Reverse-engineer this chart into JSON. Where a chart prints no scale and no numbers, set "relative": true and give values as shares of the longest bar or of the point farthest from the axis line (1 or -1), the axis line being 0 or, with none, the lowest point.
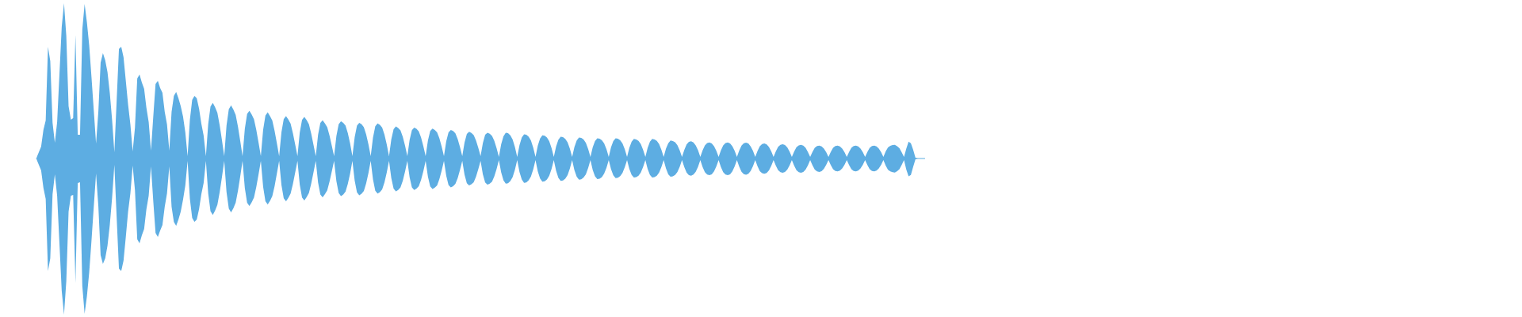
{
  "chart_data": {
    "type": "area",
    "relative": true,
    "categories": [
      null,
      null,
      null,
      null,
      null,
      null,
      null,
      null,
      null,
      null,
      null,
      null,
      null,
      null,
      null,
      null,
      null,
      null,
      null,
      null,
      null,
      null,
      null,
      null,
      null,
      null,
      null,
      null,
      null,
      null,
      null,
      null,
      null,
      null,
      null,
      null,
      null,
      null,
      null,
      null,
      null,
      null,
      null,
      null,
      null,
      null,
      null,
      null,
      null,
      null,
      null,
      null,
      null,
      null,
      null,
      null,
      null,
      null,
      null,
      null,
      null,
      null,
      null,
      null,
      null,
      null,
      null,
      null,
      null,
      null,
      null,
      null,
      null,
      null,
      null,
      null,
      null,
      null,
      null,
      null,
      null,
      null,
      null,
      null,
      null,
      null,
      null,
      null,
      null,
      null,
      null,
      null,
      null,
      null,
      null,
      null,
      null,
      null,
      null,
      null,
      null,
      null,
      null,
      null,
      null,
      null,
      null,
      null,
      null,
      null,
      null,
      null,
      null,
      null,
      null,
      null,
      null,
      null,
      null,
      null,
      null,
      null,
      null,
      null,
      null,
      null,
      null,
      null,
      null,
      null,
      null,
      null,
      null,
      null,
      null,
      null,
      null,
      null,
      null,
      null,
      null,
      null,
      null,
      null,
      null,
      null,
      null,
      null,
      null,
      null,
      null,
      null,
      null,
      null,
      null,
      null,
      null,
      null,
      null,
      null,
      null,
      null,
      null,
      null,
      null,
      null,
      null,
      null,
      null,
      null,
      null,
      null,
      null,
      null,
      null,
      null,
      null,
      null,
      null,
      null,
      null,
      null,
      null,
      null,
      null,
      null,
      null,
      null,
      null,
      null,
      null,
      null,
      null,
      null,
      null,
      null,
      null,
      null,
      null,
      null,
      null,
      null,
      null,
      null,
      null,
      null,
      null,
      null,
      null,
      null,
      null,
      null,
      null,
      null,
      null,
      null,
      null,
      null,
      null,
      null,
      null,
      null,
      null,
      null,
      null,
      null,
      null,
      null,
      null,
      null,
      null,
      null,
      null,
      null,
      null,
      null,
      null,
      null,
      null,
      null,
      null,
      null,
      null,
      null,
      null,
      null,
      null,
      null,
      null,
      null,
      null,
      null,
      null,
      null,
      null,
      null,
      null,
      null,
      null,
      null,
      null,
      null,
      null,
      null,
      null,
      null,
      null,
      null,
      null,
      null,
      null,
      null,
      null,
      null,
      null,
      null,
      null,
      null,
      null,
      null,
      null,
      null,
      null,
      null,
      null,
      null,
      null,
      null,
      null,
      null,
      null,
      null,
      null,
      null,
      null,
      null,
      null,
      null,
      null,
      null,
      null,
      null,
      null,
      null,
      null,
      null,
      null,
      null,
      null,
      null,
      null,
      null,
      null,
      null,
      null,
      null,
      null,
      null,
      null,
      null,
      null,
      null,
      null,
      null,
      null,
      null,
      null,
      null,
      null,
      null,
      null,
      null,
      null,
      null,
      null,
      null,
      null,
      null,
      null,
      null,
      null,
      null,
      null,
      null,
      null,
      null,
      null,
      null,
      null,
      null,
      null,
      null,
      null,
      null,
      null,
      null,
      null,
      null,
      null,
      null,
      null,
      null,
      null,
      null,
      null,
      null,
      null,
      null,
      null,
      null,
      null,
      null,
      null,
      null,
      null,
      null,
      null,
      null,
      null,
      null,
      null,
      null,
      null,
      null,
      null,
      null,
      null,
      null,
      null
    ],
    "series": [
      {
        "color": "#5dade2",
        "values": [
          0.005,
          0.041,
          0.076,
          0.183,
          0.244,
          0.716,
          0.624,
          0.228,
          0.102,
          0.234,
          0.538,
          0.843,
          0.995,
          0.787,
          0.335,
          0.249,
          0.259,
          0.792,
          0.152,
          0.152,
          0.827,
          0.99,
          0.873,
          0.726,
          0.523,
          0.31,
          0.096,
          0.299,
          0.614,
          0.675,
          0.629,
          0.553,
          0.421,
          0.249,
          0.041,
          0.371,
          0.701,
          0.716,
          0.65,
          0.497,
          0.345,
          0.218,
          0.046,
          0.198,
          0.513,
          0.538,
          0.487,
          0.447,
          0.325,
          0.234,
          0.051,
          0.269,
          0.477,
          0.497,
          0.452,
          0.421,
          0.299,
          0.218,
          0.051,
          0.299,
          0.401,
          0.426,
          0.386,
          0.335,
          0.269,
          0.168,
          0.015,
          0.249,
          0.376,
          0.401,
          0.386,
          0.32,
          0.223,
          0.147,
          0.015,
          0.221,
          0.332,
          0.357,
          0.328,
          0.293,
          0.214,
          0.118,
          0.015,
          0.211,
          0.316,
          0.34,
          0.313,
          0.279,
          0.204,
          0.112,
          0.015,
          0.19,
          0.285,
          0.306,
          0.282,
          0.251,
          0.184,
          0.101,
          0.015,
          0.184,
          0.275,
          0.296,
          0.272,
          0.243,
          0.178,
          0.098,
          0.015,
          0.169,
          0.253,
          0.272,
          0.25,
          0.223,
          0.163,
          0.09,
          0.015,
          0.166,
          0.248,
          0.267,
          0.246,
          0.219,
          0.16,
          0.088,
          0.015,
          0.152,
          0.228,
          0.245,
          0.225,
          0.201,
          0.147,
          0.081,
          0.015,
          0.143,
          0.219,
          0.239,
          0.229,
          0.21,
          0.162,
          0.096,
          0.015,
          0.137,
          0.21,
          0.228,
          0.219,
          0.201,
          0.155,
          0.091,
          0.015,
          0.135,
          0.207,
          0.225,
          0.216,
          0.198,
          0.153,
          0.09,
          0.015,
          0.123,
          0.188,
          0.205,
          0.196,
          0.18,
          0.139,
          0.082,
          0.015,
          0.119,
          0.182,
          0.198,
          0.19,
          0.174,
          0.135,
          0.079,
          0.015,
          0.115,
          0.176,
          0.191,
          0.183,
          0.168,
          0.13,
          0.076,
          0.015,
          0.11,
          0.168,
          0.183,
          0.176,
          0.161,
          0.124,
          0.073,
          0.015,
          0.103,
          0.157,
          0.171,
          0.164,
          0.15,
          0.116,
          0.068,
          0.015,
          0.099,
          0.152,
          0.165,
          0.159,
          0.145,
          0.113,
          0.066,
          0.01,
          0.091,
          0.142,
          0.165,
          0.162,
          0.149,
          0.122,
          0.074,
          0.01,
          0.085,
          0.134,
          0.155,
          0.152,
          0.14,
          0.115,
          0.07,
          0.01,
          0.082,
          0.128,
          0.149,
          0.146,
          0.134,
          0.11,
          0.067,
          0.01,
          0.077,
          0.12,
          0.14,
          0.137,
          0.126,
          0.104,
          0.063,
          0.01,
          0.074,
          0.116,
          0.135,
          0.132,
          0.122,
          0.1,
          0.061,
          0.01,
          0.072,
          0.112,
          0.13,
          0.127,
          0.117,
          0.096,
          0.059,
          0.01,
          0.072,
          0.112,
          0.13,
          0.127,
          0.117,
          0.096,
          0.059,
          0.01,
          0.069,
          0.108,
          0.125,
          0.122,
          0.113,
          0.092,
          0.056,
          0.01,
          0.069,
          0.108,
          0.125,
          0.122,
          0.113,
          0.092,
          0.056,
          0.01,
          0.063,
          0.098,
          0.115,
          0.112,
          0.104,
          0.085,
          0.052,
          0.01,
          0.055,
          0.09,
          0.106,
          0.11,
          0.103,
          0.084,
          0.053,
          0.01,
          0.052,
          0.084,
          0.099,
          0.103,
          0.097,
          0.079,
          0.049,
          0.01,
          0.052,
          0.084,
          0.099,
          0.103,
          0.097,
          0.079,
          0.049,
          0.01,
          0.051,
          0.083,
          0.098,
          0.102,
          0.096,
          0.078,
          0.049,
          0.01,
          0.048,
          0.079,
          0.092,
          0.096,
          0.09,
          0.074,
          0.046,
          0.01,
          0.046,
          0.075,
          0.087,
          0.091,
          0.086,
          0.071,
          0.044,
          0.01,
          0.044,
          0.072,
          0.084,
          0.088,
          0.083,
          0.068,
          0.042,
          0.01,
          0.042,
          0.068,
          0.08,
          0.083,
          0.078,
          0.064,
          0.04,
          0.01,
          0.042,
          0.068,
          0.08,
          0.083,
          0.078,
          0.064,
          0.04,
          0.01,
          0.042,
          0.068,
          0.08,
          0.083,
          0.078,
          0.064,
          0.04,
          0.01,
          0.042,
          0.068,
          0.08,
          0.083,
          0.078,
          0.064,
          0.04,
          0.01,
          0.046,
          0.071,
          0.081,
          0.086,
          0.088,
          0.079,
          0.066,
          0.039,
          0.01,
          0.064,
          0.108,
          0.098,
          0.056,
          0.005,
          0,
          0,
          0,
          0
        ]
      },
      {
        "color": "#5dade2",
        "values": [
          -0.005,
          -0.041,
          -0.076,
          -0.188,
          -0.259,
          -0.721,
          -0.64,
          -0.228,
          -0.102,
          -0.239,
          -0.543,
          -0.848,
          -1,
          -0.787,
          -0.34,
          -0.239,
          -0.234,
          -0.797,
          -0.157,
          -0.152,
          -0.817,
          -0.995,
          -0.883,
          -0.731,
          -0.528,
          -0.31,
          -0.096,
          -0.305,
          -0.619,
          -0.675,
          -0.64,
          -0.558,
          -0.426,
          -0.254,
          -0.041,
          -0.376,
          -0.706,
          -0.721,
          -0.655,
          -0.503,
          -0.34,
          -0.223,
          -0.046,
          -0.203,
          -0.518,
          -0.543,
          -0.492,
          -0.452,
          -0.325,
          -0.239,
          -0.051,
          -0.274,
          -0.477,
          -0.503,
          -0.462,
          -0.426,
          -0.31,
          -0.223,
          -0.051,
          -0.31,
          -0.406,
          -0.431,
          -0.391,
          -0.34,
          -0.264,
          -0.173,
          -0.015,
          -0.259,
          -0.381,
          -0.406,
          -0.391,
          -0.325,
          -0.228,
          -0.157,
          -0.015,
          -0.224,
          -0.337,
          -0.362,
          -0.334,
          -0.297,
          -0.217,
          -0.119,
          -0.015,
          -0.214,
          -0.321,
          -0.345,
          -0.318,
          -0.283,
          -0.207,
          -0.114,
          -0.015,
          -0.189,
          -0.283,
          -0.305,
          -0.28,
          -0.25,
          -0.183,
          -0.101,
          -0.015,
          -0.182,
          -0.274,
          -0.294,
          -0.271,
          -0.241,
          -0.177,
          -0.097,
          -0.015,
          -0.17,
          -0.255,
          -0.274,
          -0.252,
          -0.225,
          -0.164,
          -0.09,
          -0.015,
          -0.167,
          -0.25,
          -0.269,
          -0.248,
          -0.221,
          -0.161,
          -0.089,
          -0.015,
          -0.154,
          -0.231,
          -0.249,
          -0.229,
          -0.204,
          -0.149,
          -0.082,
          -0.015,
          -0.145,
          -0.221,
          -0.241,
          -0.231,
          -0.212,
          -0.163,
          -0.096,
          -0.015,
          -0.142,
          -0.217,
          -0.236,
          -0.226,
          -0.208,
          -0.16,
          -0.094,
          -0.015,
          -0.135,
          -0.207,
          -0.225,
          -0.216,
          -0.198,
          -0.153,
          -0.09,
          -0.015,
          -0.126,
          -0.193,
          -0.21,
          -0.202,
          -0.185,
          -0.143,
          -0.084,
          -0.015,
          -0.121,
          -0.185,
          -0.202,
          -0.193,
          -0.178,
          -0.137,
          -0.081,
          -0.015,
          -0.117,
          -0.179,
          -0.195,
          -0.187,
          -0.172,
          -0.132,
          -0.078,
          -0.015,
          -0.111,
          -0.17,
          -0.185,
          -0.177,
          -0.163,
          -0.126,
          -0.074,
          -0.015,
          -0.104,
          -0.159,
          -0.173,
          -0.165,
          -0.152,
          -0.117,
          -0.069,
          -0.015,
          -0.101,
          -0.154,
          -0.168,
          -0.161,
          -0.148,
          -0.114,
          -0.067,
          -0.01,
          -0.089,
          -0.139,
          -0.161,
          -0.158,
          -0.145,
          -0.119,
          -0.072,
          -0.01,
          -0.086,
          -0.134,
          -0.156,
          -0.153,
          -0.14,
          -0.115,
          -0.07,
          -0.01,
          -0.082,
          -0.128,
          -0.149,
          -0.146,
          -0.134,
          -0.111,
          -0.067,
          -0.01,
          -0.079,
          -0.124,
          -0.144,
          -0.141,
          -0.13,
          -0.107,
          -0.065,
          -0.01,
          -0.075,
          -0.117,
          -0.136,
          -0.133,
          -0.122,
          -0.101,
          -0.061,
          -0.01,
          -0.073,
          -0.114,
          -0.132,
          -0.129,
          -0.119,
          -0.097,
          -0.059,
          -0.01,
          -0.069,
          -0.108,
          -0.125,
          -0.123,
          -0.113,
          -0.093,
          -0.056,
          -0.01,
          -0.067,
          -0.105,
          -0.122,
          -0.119,
          -0.11,
          -0.09,
          -0.055,
          -0.01,
          -0.067,
          -0.105,
          -0.122,
          -0.119,
          -0.11,
          -0.09,
          -0.055,
          -0.01,
          -0.064,
          -0.101,
          -0.117,
          -0.114,
          -0.105,
          -0.086,
          -0.053,
          -0.01,
          -0.055,
          -0.09,
          -0.106,
          -0.11,
          -0.103,
          -0.085,
          -0.053,
          -0.01,
          -0.054,
          -0.087,
          -0.103,
          -0.107,
          -0.101,
          -0.082,
          -0.051,
          -0.01,
          -0.054,
          -0.087,
          -0.103,
          -0.107,
          -0.101,
          -0.082,
          -0.051,
          -0.01,
          -0.052,
          -0.085,
          -0.1,
          -0.104,
          -0.098,
          -0.08,
          -0.05,
          -0.01,
          -0.049,
          -0.081,
          -0.094,
          -0.098,
          -0.092,
          -0.076,
          -0.047,
          -0.01,
          -0.046,
          -0.075,
          -0.087,
          -0.091,
          -0.086,
          -0.071,
          -0.044,
          -0.01,
          -0.046,
          -0.075,
          -0.087,
          -0.091,
          -0.086,
          -0.071,
          -0.044,
          -0.01,
          -0.043,
          -0.071,
          -0.083,
          -0.086,
          -0.081,
          -0.066,
          -0.041,
          -0.01,
          -0.042,
          -0.068,
          -0.08,
          -0.083,
          -0.078,
          -0.064,
          -0.04,
          -0.01,
          -0.042,
          -0.068,
          -0.08,
          -0.083,
          -0.078,
          -0.064,
          -0.04,
          -0.01,
          -0.042,
          -0.068,
          -0.08,
          -0.083,
          -0.078,
          -0.064,
          -0.04,
          -0.01,
          -0.046,
          -0.072,
          -0.083,
          -0.088,
          -0.09,
          -0.081,
          -0.068,
          -0.041,
          -0.01,
          -0.071,
          -0.114,
          -0.105,
          -0.053,
          -0.005,
          0,
          0,
          0,
          0
        ]
      }
    ]
  }
}
